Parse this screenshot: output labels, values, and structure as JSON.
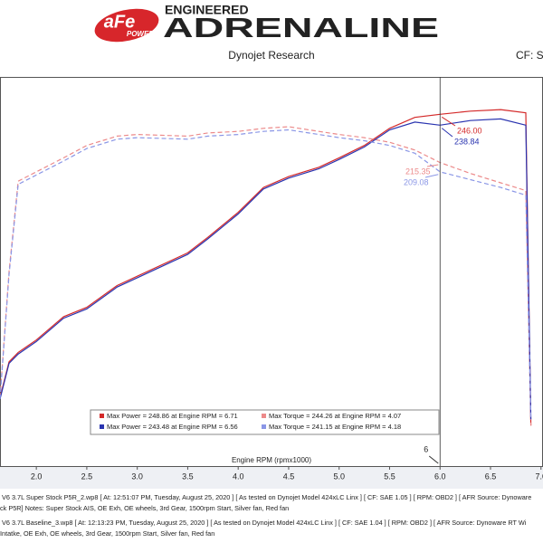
{
  "header": {
    "brand": "aFe",
    "brand_sub": "POWER",
    "tagline_top": "ENGINEERED",
    "tagline_main": "ADRENALINE"
  },
  "chart_data": {
    "type": "line",
    "title": "Dynojet Research",
    "correction": "CF: SA",
    "x_label": "Engine RPM (rpmx1000)",
    "x": [
      1.64,
      1.73,
      1.82,
      2.0,
      2.27,
      2.5,
      2.8,
      3.0,
      3.5,
      3.7,
      4.0,
      4.25,
      4.5,
      4.8,
      5.0,
      5.25,
      5.5,
      5.75,
      6.0,
      6.3,
      6.6,
      6.85,
      6.9
    ],
    "xlim": [
      1.64,
      7.02
    ],
    "ylim": [
      20,
      270
    ],
    "xticks": [
      {
        "value": 2,
        "label": "2.0"
      },
      {
        "value": 2.5,
        "label": "2.5"
      },
      {
        "value": 3,
        "label": "3.0"
      },
      {
        "value": 3.5,
        "label": "3.5"
      },
      {
        "value": 4,
        "label": "4.0"
      },
      {
        "value": 4.5,
        "label": "4.5"
      },
      {
        "value": 5,
        "label": "5.0"
      },
      {
        "value": 5.5,
        "label": "5.5"
      },
      {
        "value": 6,
        "label": "6.0"
      },
      {
        "value": 6.5,
        "label": "6.5"
      },
      {
        "value": 7,
        "label": "7.0"
      }
    ],
    "series": [
      {
        "name": "Max Power = 248.86 at Engine RPM = 6.71",
        "color": "#d42a2a",
        "dashed": false,
        "values": [
          64,
          87,
          93,
          101,
          116,
          122,
          136,
          142,
          157,
          167,
          183,
          199,
          206,
          212,
          218,
          226,
          237,
          244,
          246,
          248,
          249,
          247,
          46
        ]
      },
      {
        "name": "Max Torque = 244.26 at Engine RPM = 4.07",
        "color": "#ec8a8a",
        "dashed": true,
        "values": [
          64,
          145,
          203,
          209,
          218,
          226,
          232,
          233,
          232,
          234,
          235,
          237,
          238,
          235,
          233,
          231,
          228,
          223,
          215,
          208,
          202,
          197,
          46
        ]
      },
      {
        "name": "Max Power = 243.48 at Engine RPM = 6.56",
        "color": "#2a34b0",
        "dashed": false,
        "values": [
          63,
          86,
          92,
          100,
          115,
          121,
          135,
          141,
          156,
          166,
          182,
          198,
          205,
          211,
          217,
          225,
          236,
          241,
          239,
          242,
          243,
          239,
          50
        ]
      },
      {
        "name": "Max Torque = 241.15 at Engine RPM = 4.18",
        "color": "#8a96e6",
        "dashed": true,
        "values": [
          63,
          143,
          201,
          207,
          216,
          224,
          230,
          231,
          230,
          232,
          233,
          235,
          236,
          233,
          231,
          229,
          226,
          221,
          209,
          204,
          199,
          194,
          50
        ]
      }
    ],
    "cursor_x": 6,
    "annotations": [
      {
        "y": 246.0,
        "label": "246.00",
        "color": "#d42a2a"
      },
      {
        "y": 238.84,
        "label": "238.84",
        "color": "#2a34b0"
      },
      {
        "y": 215.35,
        "label": "215.35",
        "color": "#ec8a8a"
      },
      {
        "y": 209.08,
        "label": "209.08",
        "color": "#8a96e6"
      }
    ]
  },
  "footer": {
    "lines": [
      "V6 3.7L Super Stock P5R_2.wp8 [ At: 12:51:07 PM, Tuesday, August 25, 2020 ] [ As tested on Dynojet Model 424xLC Linx ] [ CF: SAE 1.05 ] [ RPM: OBD2 ] [ AFR Source: Dynoware",
      "ck P5R]  Notes: Super Stock AIS, OE Exh, OE wheels, 3rd Gear, 1500rpm Start, Silver fan, Red fan",
      "V6 3.7L Baseline_3.wp8 [ At: 12:13:23 PM, Tuesday, August 25, 2020 ] [ As tested on Dynojet Model 424xLC Linx ] [ CF: SAE 1.04 ] [ RPM: OBD2 ] [ AFR Source: Dynoware RT Wi",
      "Intatke, OE Exh, OE wheels, 3rd Gear, 1500rpm Start, Silver fan, Red fan"
    ]
  }
}
